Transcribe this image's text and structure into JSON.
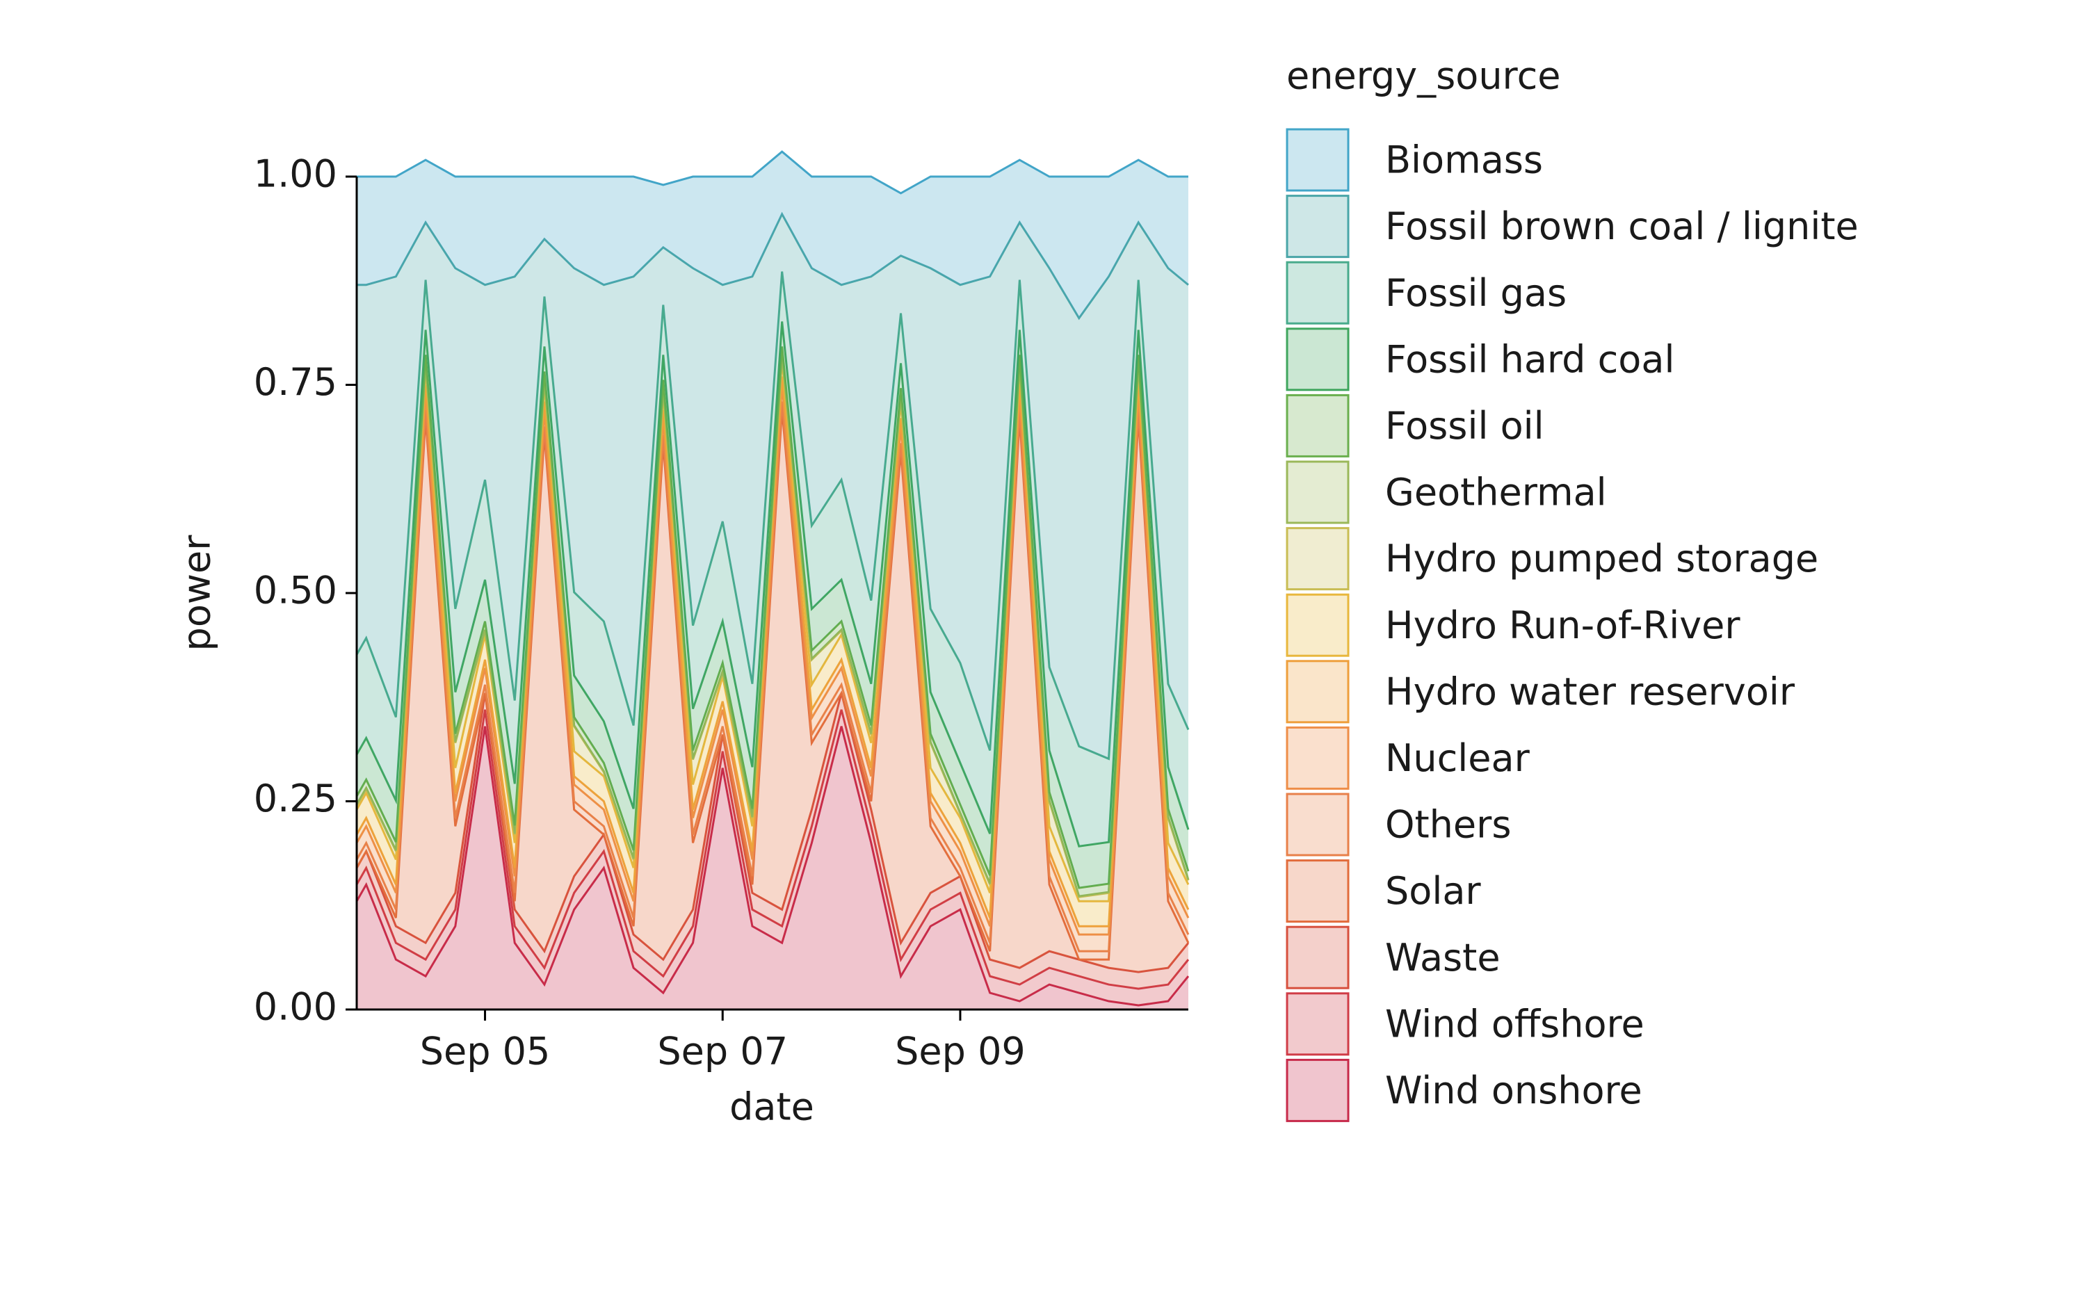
{
  "chart_data": {
    "type": "stacked-area",
    "xlabel": "date",
    "ylabel": "power",
    "legend_title": "energy_source",
    "xlim": [
      3.92,
      10.92
    ],
    "ylim": [
      0,
      1
    ],
    "xticks": [
      {
        "value": 5,
        "label": "Sep 05"
      },
      {
        "value": 7,
        "label": "Sep 07"
      },
      {
        "value": 9,
        "label": "Sep 09"
      }
    ],
    "yticks": [
      {
        "value": 0,
        "label": "0.00"
      },
      {
        "value": 0.25,
        "label": "0.25"
      },
      {
        "value": 0.5,
        "label": "0.50"
      },
      {
        "value": 0.75,
        "label": "0.75"
      },
      {
        "value": 1,
        "label": "1.00"
      }
    ],
    "x": [
      3.92,
      4,
      4.25,
      4.5,
      4.75,
      5,
      5.25,
      5.5,
      5.75,
      6,
      6.25,
      6.5,
      6.75,
      7,
      7.25,
      7.5,
      7.75,
      8,
      8.25,
      8.5,
      8.75,
      9,
      9.25,
      9.5,
      9.75,
      10,
      10.25,
      10.5,
      10.75,
      10.92
    ],
    "series": [
      {
        "name": "Biomass",
        "color": "#42a5c8",
        "values": [
          0.13,
          0.13,
          0.12,
          0.075,
          0.11,
          0.13,
          0.12,
          0.075,
          0.11,
          0.13,
          0.12,
          0.075,
          0.11,
          0.13,
          0.12,
          0.075,
          0.11,
          0.13,
          0.12,
          0.075,
          0.11,
          0.13,
          0.12,
          0.075,
          0.11,
          0.17,
          0.12,
          0.075,
          0.11,
          0.13
        ]
      },
      {
        "name": "Fossil brown coal / lignite",
        "color": "#4aa6a8",
        "values": [
          0.444,
          0.424,
          0.529,
          0.069,
          0.409,
          0.234,
          0.509,
          0.069,
          0.389,
          0.404,
          0.539,
          0.069,
          0.429,
          0.284,
          0.489,
          0.069,
          0.309,
          0.234,
          0.389,
          0.069,
          0.409,
          0.454,
          0.569,
          0.069,
          0.479,
          0.514,
          0.579,
          0.069,
          0.499,
          0.534
        ]
      },
      {
        "name": "Fossil gas",
        "color": "#48ab8c",
        "values": [
          0.12,
          0.12,
          0.1,
          0.06,
          0.1,
          0.12,
          0.1,
          0.06,
          0.1,
          0.12,
          0.1,
          0.06,
          0.1,
          0.12,
          0.1,
          0.06,
          0.1,
          0.12,
          0.1,
          0.06,
          0.1,
          0.12,
          0.1,
          0.06,
          0.1,
          0.12,
          0.1,
          0.06,
          0.1,
          0.12
        ]
      },
      {
        "name": "Fossil hard coal",
        "color": "#3fa65e",
        "values": [
          0.05,
          0.05,
          0.05,
          0.03,
          0.05,
          0.05,
          0.05,
          0.03,
          0.05,
          0.05,
          0.05,
          0.03,
          0.05,
          0.05,
          0.05,
          0.03,
          0.05,
          0.05,
          0.05,
          0.03,
          0.05,
          0.05,
          0.05,
          0.03,
          0.05,
          0.05,
          0.05,
          0.03,
          0.05,
          0.05
        ]
      },
      {
        "name": "Fossil oil",
        "color": "#6aaf4e",
        "values": [
          0.01,
          0.01,
          0.01,
          0.01,
          0.01,
          0.01,
          0.01,
          0.01,
          0.01,
          0.01,
          0.01,
          0.01,
          0.01,
          0.01,
          0.01,
          0.01,
          0.01,
          0.01,
          0.01,
          0.01,
          0.01,
          0.01,
          0.01,
          0.01,
          0.01,
          0.01,
          0.01,
          0.01,
          0.01,
          0.01
        ]
      },
      {
        "name": "Geothermal",
        "color": "#9bb85a",
        "values": [
          0.001,
          0.001,
          0.001,
          0.001,
          0.001,
          0.001,
          0.001,
          0.001,
          0.001,
          0.001,
          0.001,
          0.001,
          0.001,
          0.001,
          0.001,
          0.001,
          0.001,
          0.001,
          0.001,
          0.001,
          0.001,
          0.001,
          0.001,
          0.001,
          0.001,
          0.001,
          0.001,
          0.001,
          0.001,
          0.001
        ]
      },
      {
        "name": "Hydro pumped storage",
        "color": "#c9bd54",
        "values": [
          0.005,
          0.005,
          0.01,
          0.005,
          0.03,
          0.005,
          0.01,
          0.005,
          0.03,
          0.005,
          0.01,
          0.005,
          0.03,
          0.005,
          0.01,
          0.005,
          0.03,
          0.005,
          0.01,
          0.005,
          0.03,
          0.005,
          0.01,
          0.005,
          0.03,
          0.005,
          0.01,
          0.005,
          0.03,
          0.005
        ]
      },
      {
        "name": "Hydro Run-of-River",
        "color": "#e8b73c",
        "values": [
          0.03,
          0.03,
          0.03,
          0.02,
          0.03,
          0.03,
          0.03,
          0.02,
          0.03,
          0.03,
          0.03,
          0.02,
          0.03,
          0.03,
          0.03,
          0.02,
          0.03,
          0.03,
          0.03,
          0.02,
          0.03,
          0.03,
          0.03,
          0.02,
          0.03,
          0.03,
          0.03,
          0.02,
          0.03,
          0.03
        ]
      },
      {
        "name": "Hydro water reservoir",
        "color": "#ee9f3c",
        "values": [
          0.01,
          0.01,
          0.01,
          0.01,
          0.01,
          0.01,
          0.01,
          0.01,
          0.01,
          0.01,
          0.01,
          0.01,
          0.01,
          0.01,
          0.01,
          0.01,
          0.01,
          0.01,
          0.01,
          0.01,
          0.01,
          0.01,
          0.01,
          0.01,
          0.01,
          0.01,
          0.01,
          0.01,
          0.01,
          0.01
        ]
      },
      {
        "name": "Nuclear",
        "color": "#ee8e48",
        "values": [
          0.02,
          0.02,
          0.02,
          0.02,
          0.02,
          0.02,
          0.02,
          0.02,
          0.02,
          0.02,
          0.02,
          0.02,
          0.02,
          0.02,
          0.02,
          0.02,
          0.02,
          0.02,
          0.02,
          0.02,
          0.02,
          0.02,
          0.02,
          0.02,
          0.02,
          0.02,
          0.02,
          0.02,
          0.02,
          0.02
        ]
      },
      {
        "name": "Others",
        "color": "#e8804a",
        "values": [
          0.01,
          0.01,
          0.01,
          0.01,
          0.01,
          0.01,
          0.01,
          0.01,
          0.01,
          0.01,
          0.01,
          0.01,
          0.01,
          0.01,
          0.01,
          0.01,
          0.01,
          0.01,
          0.01,
          0.01,
          0.01,
          0.01,
          0.01,
          0.01,
          0.01,
          0.01,
          0.01,
          0.01,
          0.01,
          0.01
        ]
      },
      {
        "name": "Solar",
        "color": "#e26c3c",
        "values": [
          0,
          0,
          0.01,
          0.63,
          0.08,
          0,
          0.01,
          0.62,
          0.08,
          0,
          0.01,
          0.62,
          0.08,
          0,
          0.01,
          0.6,
          0.08,
          0,
          0.01,
          0.59,
          0.08,
          0,
          0.01,
          0.66,
          0.08,
          0,
          0.01,
          0.665,
          0.08,
          0
        ]
      },
      {
        "name": "Waste",
        "color": "#d7503e",
        "values": [
          0.02,
          0.02,
          0.02,
          0.02,
          0.02,
          0.02,
          0.02,
          0.02,
          0.02,
          0.02,
          0.02,
          0.02,
          0.02,
          0.02,
          0.02,
          0.02,
          0.02,
          0.02,
          0.02,
          0.02,
          0.02,
          0.02,
          0.02,
          0.02,
          0.02,
          0.02,
          0.02,
          0.02,
          0.02,
          0.02
        ]
      },
      {
        "name": "Wind offshore",
        "color": "#d03c47",
        "values": [
          0.02,
          0.02,
          0.02,
          0.02,
          0.02,
          0.02,
          0.02,
          0.02,
          0.02,
          0.02,
          0.02,
          0.02,
          0.02,
          0.02,
          0.02,
          0.02,
          0.02,
          0.02,
          0.02,
          0.02,
          0.02,
          0.02,
          0.02,
          0.02,
          0.02,
          0.02,
          0.02,
          0.02,
          0.02,
          0.02
        ]
      },
      {
        "name": "Wind onshore",
        "color": "#c72a4a",
        "values": [
          0.13,
          0.15,
          0.06,
          0.04,
          0.1,
          0.34,
          0.08,
          0.03,
          0.12,
          0.17,
          0.05,
          0.02,
          0.08,
          0.29,
          0.1,
          0.08,
          0.2,
          0.34,
          0.2,
          0.04,
          0.1,
          0.12,
          0.02,
          0.01,
          0.03,
          0.02,
          0.01,
          0.005,
          0.01,
          0.04
        ]
      }
    ]
  }
}
